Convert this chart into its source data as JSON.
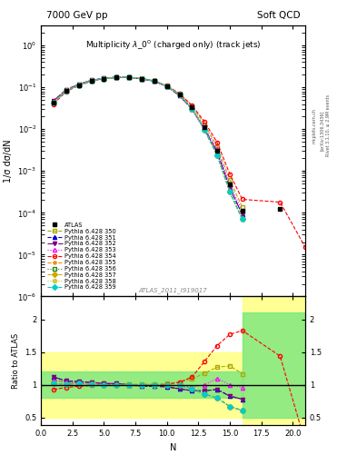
{
  "title_left": "7000 GeV pp",
  "title_right": "Soft QCD",
  "main_title": "Multiplicity $\\lambda\\_0^0$ (charged only) (track jets)",
  "watermark": "ATLAS_2011_I919017",
  "ylabel_main": "1/σ dσ/dN",
  "ylabel_ratio": "Ratio to ATLAS",
  "xlabel": "N",
  "right_label": "Rivet 3.1.10, ≥ 2.9M events",
  "arxiv_label": "[arXiv:1306.3436]",
  "mcplots_label": "mcplots.cern.ch",
  "xlim": [
    0,
    21
  ],
  "ylim_main": [
    1e-06,
    3
  ],
  "ylim_ratio": [
    0.38,
    2.35
  ],
  "atlas_data": {
    "x": [
      1,
      2,
      3,
      4,
      5,
      6,
      7,
      8,
      9,
      10,
      11,
      12,
      13,
      14,
      15,
      16,
      19
    ],
    "y": [
      0.043,
      0.083,
      0.112,
      0.142,
      0.162,
      0.172,
      0.172,
      0.162,
      0.142,
      0.108,
      0.068,
      0.033,
      0.011,
      0.003,
      0.00048,
      0.000115,
      0.000125
    ]
  },
  "pythia_tunes": [
    {
      "label": "Pythia 6.428 350",
      "color": "#aaaa00",
      "marker": "s",
      "mfc": "none",
      "ls": "--",
      "x": [
        1,
        2,
        3,
        4,
        5,
        6,
        7,
        8,
        9,
        10,
        11,
        12,
        13,
        14,
        15,
        16
      ],
      "y": [
        0.046,
        0.086,
        0.116,
        0.146,
        0.163,
        0.173,
        0.173,
        0.163,
        0.143,
        0.11,
        0.071,
        0.036,
        0.013,
        0.0038,
        0.00062,
        0.000135
      ],
      "ratio": [
        1.07,
        1.04,
        1.03,
        1.03,
        1.01,
        1.01,
        1.01,
        1.01,
        1.01,
        1.02,
        1.04,
        1.09,
        1.18,
        1.27,
        1.29,
        1.17
      ]
    },
    {
      "label": "Pythia 6.428 351",
      "color": "#0000cc",
      "marker": "^",
      "mfc": "#0000cc",
      "ls": "--",
      "x": [
        1,
        2,
        3,
        4,
        5,
        6,
        7,
        8,
        9,
        10,
        11,
        12,
        13,
        14,
        15,
        16
      ],
      "y": [
        0.048,
        0.088,
        0.118,
        0.148,
        0.165,
        0.175,
        0.172,
        0.16,
        0.14,
        0.105,
        0.064,
        0.03,
        0.01,
        0.0028,
        0.0004,
        9e-05
      ],
      "ratio": [
        1.12,
        1.06,
        1.05,
        1.04,
        1.02,
        1.02,
        1.0,
        0.98,
        0.98,
        0.97,
        0.94,
        0.91,
        0.91,
        0.93,
        0.83,
        0.78
      ]
    },
    {
      "label": "Pythia 6.428 352",
      "color": "#7b007b",
      "marker": "v",
      "mfc": "#7b007b",
      "ls": "-.",
      "x": [
        1,
        2,
        3,
        4,
        5,
        6,
        7,
        8,
        9,
        10,
        11,
        12,
        13,
        14,
        15,
        16
      ],
      "y": [
        0.048,
        0.088,
        0.118,
        0.148,
        0.165,
        0.175,
        0.172,
        0.16,
        0.14,
        0.105,
        0.064,
        0.03,
        0.01,
        0.0028,
        0.0004,
        9e-05
      ],
      "ratio": [
        1.12,
        1.06,
        1.05,
        1.04,
        1.02,
        1.02,
        1.0,
        0.98,
        0.98,
        0.97,
        0.94,
        0.91,
        0.91,
        0.93,
        0.83,
        0.78
      ]
    },
    {
      "label": "Pythia 6.428 353",
      "color": "#ff00ff",
      "marker": "^",
      "mfc": "none",
      "ls": ":",
      "x": [
        1,
        2,
        3,
        4,
        5,
        6,
        7,
        8,
        9,
        10,
        11,
        12,
        13,
        14,
        15,
        16
      ],
      "y": [
        0.046,
        0.086,
        0.116,
        0.146,
        0.163,
        0.173,
        0.171,
        0.161,
        0.141,
        0.107,
        0.067,
        0.032,
        0.011,
        0.0033,
        0.00048,
        0.00011
      ],
      "ratio": [
        1.07,
        1.04,
        1.03,
        1.03,
        1.01,
        1.01,
        0.99,
        0.99,
        0.99,
        0.99,
        0.99,
        0.97,
        1.0,
        1.1,
        1.0,
        0.96
      ]
    },
    {
      "label": "Pythia 6.428 354",
      "color": "#ff0000",
      "marker": "o",
      "mfc": "none",
      "ls": "--",
      "x": [
        1,
        2,
        3,
        4,
        5,
        6,
        7,
        8,
        9,
        10,
        11,
        12,
        13,
        14,
        15,
        16,
        19,
        21
      ],
      "y": [
        0.04,
        0.08,
        0.11,
        0.14,
        0.16,
        0.171,
        0.171,
        0.161,
        0.141,
        0.109,
        0.071,
        0.037,
        0.015,
        0.0048,
        0.00085,
        0.00021,
        0.00018,
        1.5e-05
      ],
      "ratio": [
        0.93,
        0.96,
        0.98,
        0.99,
        0.99,
        0.99,
        0.99,
        0.99,
        0.99,
        1.01,
        1.04,
        1.12,
        1.36,
        1.6,
        1.77,
        1.83,
        1.44,
        0.12
      ]
    },
    {
      "label": "Pythia 6.428 355",
      "color": "#ff8800",
      "marker": "*",
      "mfc": "#ff8800",
      "ls": "--",
      "x": [
        1,
        2,
        3,
        4,
        5,
        6,
        7,
        8,
        9,
        10,
        11,
        12,
        13,
        14,
        15,
        16
      ],
      "y": [
        0.044,
        0.084,
        0.114,
        0.144,
        0.162,
        0.172,
        0.172,
        0.162,
        0.142,
        0.107,
        0.067,
        0.031,
        0.0095,
        0.0024,
        0.00032,
        7e-05
      ],
      "ratio": [
        1.02,
        1.01,
        1.02,
        1.01,
        1.0,
        1.0,
        1.0,
        1.0,
        1.0,
        0.99,
        0.99,
        0.94,
        0.86,
        0.8,
        0.67,
        0.61
      ]
    },
    {
      "label": "Pythia 6.428 356",
      "color": "#228b22",
      "marker": "s",
      "mfc": "none",
      "ls": ":",
      "x": [
        1,
        2,
        3,
        4,
        5,
        6,
        7,
        8,
        9,
        10,
        11,
        12,
        13,
        14,
        15,
        16
      ],
      "y": [
        0.044,
        0.084,
        0.114,
        0.144,
        0.162,
        0.172,
        0.172,
        0.162,
        0.142,
        0.107,
        0.067,
        0.031,
        0.0095,
        0.0024,
        0.00032,
        7e-05
      ],
      "ratio": [
        1.02,
        1.01,
        1.02,
        1.01,
        1.0,
        1.0,
        1.0,
        1.0,
        1.0,
        0.99,
        0.99,
        0.94,
        0.86,
        0.8,
        0.67,
        0.61
      ]
    },
    {
      "label": "Pythia 6.428 357",
      "color": "#ccaa00",
      "marker": "D",
      "mfc": "#ccaa00",
      "ls": "--",
      "x": [
        1,
        2,
        3,
        4,
        5,
        6,
        7,
        8,
        9,
        10,
        11,
        12,
        13,
        14,
        15,
        16
      ],
      "y": [
        0.044,
        0.084,
        0.114,
        0.144,
        0.162,
        0.172,
        0.172,
        0.162,
        0.142,
        0.107,
        0.067,
        0.031,
        0.0095,
        0.0024,
        0.00032,
        7e-05
      ],
      "ratio": [
        1.02,
        1.01,
        1.02,
        1.01,
        1.0,
        1.0,
        1.0,
        1.0,
        1.0,
        0.99,
        0.99,
        0.94,
        0.86,
        0.8,
        0.67,
        0.61
      ]
    },
    {
      "label": "Pythia 6.428 358",
      "color": "#cccc44",
      "marker": "o",
      "mfc": "#cccc44",
      "ls": ":",
      "x": [
        1,
        2,
        3,
        4,
        5,
        6,
        7,
        8,
        9,
        10,
        11,
        12,
        13,
        14,
        15,
        16
      ],
      "y": [
        0.044,
        0.084,
        0.114,
        0.144,
        0.162,
        0.172,
        0.172,
        0.162,
        0.142,
        0.107,
        0.067,
        0.031,
        0.0095,
        0.0024,
        0.00032,
        7e-05
      ],
      "ratio": [
        1.02,
        1.01,
        1.02,
        1.01,
        1.0,
        1.0,
        1.0,
        1.0,
        1.0,
        0.99,
        0.99,
        0.94,
        0.86,
        0.8,
        0.67,
        0.61
      ]
    },
    {
      "label": "Pythia 6.428 359",
      "color": "#00cccc",
      "marker": "D",
      "mfc": "#00cccc",
      "ls": "--",
      "x": [
        1,
        2,
        3,
        4,
        5,
        6,
        7,
        8,
        9,
        10,
        11,
        12,
        13,
        14,
        15,
        16
      ],
      "y": [
        0.044,
        0.084,
        0.114,
        0.144,
        0.162,
        0.172,
        0.172,
        0.162,
        0.142,
        0.107,
        0.067,
        0.031,
        0.0095,
        0.0024,
        0.00032,
        7e-05
      ],
      "ratio": [
        1.02,
        1.01,
        1.02,
        1.01,
        1.0,
        1.0,
        1.0,
        1.0,
        1.0,
        0.99,
        0.99,
        0.94,
        0.86,
        0.8,
        0.67,
        0.61
      ]
    }
  ]
}
